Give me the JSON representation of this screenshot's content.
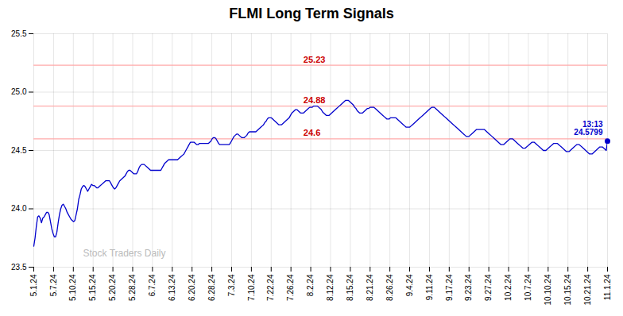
{
  "chart_data": {
    "type": "line",
    "title": "FLMI Long Term Signals",
    "watermark": "Stock Traders Daily",
    "color": "#0000cc",
    "grid": true,
    "xlim": [
      0,
      29
    ],
    "xticks": [
      {
        "value": 0,
        "label": "5.1.24"
      },
      {
        "value": 1,
        "label": "5.7.24"
      },
      {
        "value": 2,
        "label": "5.10.24"
      },
      {
        "value": 3,
        "label": "5.15.24"
      },
      {
        "value": 4,
        "label": "5.20.24"
      },
      {
        "value": 5,
        "label": "5.28.24"
      },
      {
        "value": 6,
        "label": "6.7.24"
      },
      {
        "value": 7,
        "label": "6.13.24"
      },
      {
        "value": 8,
        "label": "6.20.24"
      },
      {
        "value": 9,
        "label": "6.28.24"
      },
      {
        "value": 10,
        "label": "7.3.24"
      },
      {
        "value": 11,
        "label": "7.10.24"
      },
      {
        "value": 12,
        "label": "7.22.24"
      },
      {
        "value": 13,
        "label": "7.26.24"
      },
      {
        "value": 14,
        "label": "8.2.24"
      },
      {
        "value": 15,
        "label": "8.12.24"
      },
      {
        "value": 16,
        "label": "8.15.24"
      },
      {
        "value": 17,
        "label": "8.21.24"
      },
      {
        "value": 18,
        "label": "8.26.24"
      },
      {
        "value": 19,
        "label": "9.4.24"
      },
      {
        "value": 20,
        "label": "9.11.24"
      },
      {
        "value": 21,
        "label": "9.17.24"
      },
      {
        "value": 22,
        "label": "9.23.24"
      },
      {
        "value": 23,
        "label": "9.27.24"
      },
      {
        "value": 24,
        "label": "10.2.24"
      },
      {
        "value": 25,
        "label": "10.7.24"
      },
      {
        "value": 26,
        "label": "10.10.24"
      },
      {
        "value": 27,
        "label": "10.15.24"
      },
      {
        "value": 28,
        "label": "10.21.24"
      },
      {
        "value": 29,
        "label": "11.1.24"
      }
    ],
    "ylim": [
      23.5,
      25.5
    ],
    "yticks": [
      23.5,
      {
        "value": 24.0,
        "label": "24.0"
      },
      24.5,
      {
        "value": 25.0,
        "label": "25.0"
      },
      25.5
    ],
    "hlines": [
      {
        "value": 25.23,
        "label": "25.23",
        "color": "#ffaaaa",
        "label_color": "#cc0000"
      },
      {
        "value": 24.88,
        "label": "24.88",
        "color": "#ffaaaa",
        "label_color": "#cc0000"
      },
      {
        "value": 24.6,
        "label": "24.6",
        "color": "#ffaaaa",
        "label_color": "#cc0000"
      }
    ],
    "annotation": {
      "text": "13:13\n24.5799",
      "color": "#0000cc",
      "marker": "circle"
    },
    "values": [
      23.68,
      23.75,
      23.85,
      23.93,
      23.94,
      23.92,
      23.88,
      23.92,
      23.93,
      23.95,
      23.97,
      23.97,
      23.95,
      23.89,
      23.83,
      23.79,
      23.76,
      23.76,
      23.8,
      23.88,
      23.95,
      24.0,
      24.03,
      24.04,
      24.02,
      24.0,
      23.97,
      23.95,
      23.93,
      23.91,
      23.9,
      23.89,
      23.9,
      23.95,
      24.0,
      24.08,
      24.12,
      24.17,
      24.19,
      24.2,
      24.19,
      24.17,
      24.15,
      24.17,
      24.19,
      24.21,
      24.2,
      24.2,
      24.19,
      24.18,
      24.18,
      24.19,
      24.2,
      24.21,
      24.22,
      24.23,
      24.24,
      24.24,
      24.24,
      24.24,
      24.22,
      24.2,
      24.18,
      24.17,
      24.18,
      24.2,
      24.22,
      24.24,
      24.25,
      24.26,
      24.27,
      24.28,
      24.3,
      24.32,
      24.33,
      24.33,
      24.32,
      24.31,
      24.3,
      24.3,
      24.3,
      24.32,
      24.35,
      24.37,
      24.38,
      24.38,
      24.38,
      24.37,
      24.36,
      24.35,
      24.34,
      24.33,
      24.33,
      24.33,
      24.33,
      24.33,
      24.33,
      24.33,
      24.33,
      24.33,
      24.35,
      24.37,
      24.39,
      24.4,
      24.41,
      24.42,
      24.42,
      24.42,
      24.42,
      24.42,
      24.42,
      24.42,
      24.42,
      24.43,
      24.44,
      24.45,
      24.46,
      24.47,
      24.49,
      24.51,
      24.53,
      24.55,
      24.57,
      24.57,
      24.57,
      24.57,
      24.56,
      24.55,
      24.55,
      24.56,
      24.56,
      24.56,
      24.56,
      24.56,
      24.56,
      24.56,
      24.56,
      24.57,
      24.58,
      24.6,
      24.61,
      24.61,
      24.6,
      24.58,
      24.56,
      24.55,
      24.55,
      24.55,
      24.55,
      24.55,
      24.55,
      24.55,
      24.55,
      24.56,
      24.58,
      24.6,
      24.62,
      24.63,
      24.64,
      24.64,
      24.63,
      24.62,
      24.61,
      24.61,
      24.61,
      24.62,
      24.63,
      24.65,
      24.66,
      24.66,
      24.66,
      24.66,
      24.66,
      24.66,
      24.67,
      24.68,
      24.69,
      24.7,
      24.71,
      24.72,
      24.74,
      24.75,
      24.77,
      24.78,
      24.78,
      24.78,
      24.77,
      24.76,
      24.75,
      24.74,
      24.73,
      24.72,
      24.72,
      24.72,
      24.73,
      24.74,
      24.75,
      24.76,
      24.77,
      24.78,
      24.8,
      24.82,
      24.83,
      24.84,
      24.85,
      24.85,
      24.84,
      24.83,
      24.82,
      24.82,
      24.82,
      24.83,
      24.84,
      24.85,
      24.86,
      24.87,
      24.87,
      24.87,
      24.88,
      24.88,
      24.88,
      24.88,
      24.87,
      24.86,
      24.85,
      24.83,
      24.82,
      24.81,
      24.8,
      24.8,
      24.8,
      24.81,
      24.82,
      24.83,
      24.84,
      24.85,
      24.86,
      24.87,
      24.88,
      24.89,
      24.9,
      24.91,
      24.92,
      24.93,
      24.93,
      24.93,
      24.92,
      24.91,
      24.9,
      24.89,
      24.87,
      24.86,
      24.84,
      24.83,
      24.82,
      24.82,
      24.82,
      24.83,
      24.84,
      24.85,
      24.86,
      24.86,
      24.87,
      24.87,
      24.87,
      24.87,
      24.86,
      24.85,
      24.84,
      24.83,
      24.82,
      24.81,
      24.8,
      24.79,
      24.78,
      24.77,
      24.77,
      24.77,
      24.78,
      24.78,
      24.78,
      24.78,
      24.78,
      24.77,
      24.76,
      24.75,
      24.74,
      24.73,
      24.72,
      24.71,
      24.7,
      24.7,
      24.7,
      24.7,
      24.71,
      24.72,
      24.73,
      24.74,
      24.75,
      24.76,
      24.77,
      24.78,
      24.79,
      24.8,
      24.81,
      24.82,
      24.83,
      24.84,
      24.85,
      24.86,
      24.87,
      24.87,
      24.87,
      24.86,
      24.85,
      24.84,
      24.83,
      24.82,
      24.81,
      24.8,
      24.79,
      24.78,
      24.77,
      24.76,
      24.75,
      24.74,
      24.73,
      24.72,
      24.71,
      24.7,
      24.69,
      24.68,
      24.67,
      24.66,
      24.65,
      24.64,
      24.63,
      24.62,
      24.62,
      24.62,
      24.63,
      24.64,
      24.65,
      24.66,
      24.67,
      24.68,
      24.68,
      24.68,
      24.68,
      24.68,
      24.68,
      24.68,
      24.67,
      24.66,
      24.65,
      24.64,
      24.63,
      24.62,
      24.61,
      24.6,
      24.59,
      24.58,
      24.57,
      24.56,
      24.55,
      24.55,
      24.55,
      24.56,
      24.57,
      24.58,
      24.59,
      24.6,
      24.6,
      24.6,
      24.59,
      24.58,
      24.57,
      24.56,
      24.55,
      24.54,
      24.53,
      24.52,
      24.52,
      24.52,
      24.53,
      24.54,
      24.55,
      24.56,
      24.57,
      24.57,
      24.57,
      24.56,
      24.55,
      24.54,
      24.53,
      24.52,
      24.51,
      24.5,
      24.5,
      24.5,
      24.51,
      24.52,
      24.53,
      24.54,
      24.55,
      24.56,
      24.56,
      24.56,
      24.56,
      24.55,
      24.54,
      24.53,
      24.52,
      24.51,
      24.5,
      24.49,
      24.49,
      24.49,
      24.5,
      24.51,
      24.52,
      24.53,
      24.54,
      24.55,
      24.55,
      24.55,
      24.54,
      24.53,
      24.52,
      24.51,
      24.5,
      24.49,
      24.48,
      24.47,
      24.47,
      24.47,
      24.48,
      24.49,
      24.5,
      24.51,
      24.52,
      24.53,
      24.53,
      24.53,
      24.52,
      24.51,
      24.5,
      24.5799
    ]
  }
}
